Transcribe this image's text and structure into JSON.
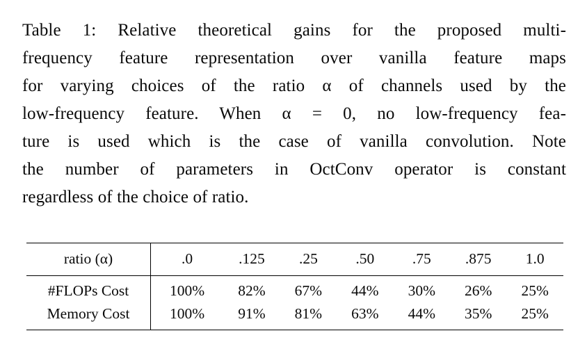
{
  "caption": {
    "lines": [
      "Table 1: Relative theoretical gains for the proposed multi-",
      "frequency feature representation over vanilla feature maps",
      "for varying choices of the ratio α of channels used by the",
      "low-frequency feature. When α = 0, no low-frequency fea-",
      "ture is used which is the case of vanilla convolution. Note",
      "the number of parameters in OctConv operator is constant",
      "regardless of the choice of ratio."
    ]
  },
  "table": {
    "header_label": "ratio (α)",
    "columns": [
      ".0",
      ".125",
      ".25",
      ".50",
      ".75",
      ".875",
      "1.0"
    ],
    "rows": [
      {
        "label": "#FLOPs Cost",
        "values": [
          "100%",
          "82%",
          "67%",
          "44%",
          "30%",
          "26%",
          "25%"
        ]
      },
      {
        "label": "Memory Cost",
        "values": [
          "100%",
          "91%",
          "81%",
          "63%",
          "44%",
          "35%",
          "25%"
        ]
      }
    ]
  },
  "chart_data": {
    "type": "table",
    "title": "Table 1: Relative theoretical gains of multi-frequency feature representation (OctConv) vs vanilla feature maps",
    "row_header": "ratio (α)",
    "categories": [
      0,
      0.125,
      0.25,
      0.5,
      0.75,
      0.875,
      1.0
    ],
    "series": [
      {
        "name": "#FLOPs Cost",
        "values": [
          100,
          82,
          67,
          44,
          30,
          26,
          25
        ],
        "unit": "%"
      },
      {
        "name": "Memory Cost",
        "values": [
          100,
          91,
          81,
          63,
          44,
          35,
          25
        ],
        "unit": "%"
      }
    ]
  }
}
